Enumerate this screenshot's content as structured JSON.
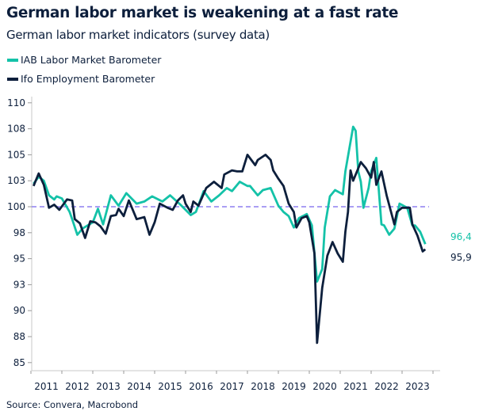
{
  "chart_data": {
    "type": "line",
    "title": "German labor market is weakening at a fast rate",
    "subtitle": "German labor market indicators (survey data)",
    "source": "Source: Convera, Macrobond",
    "legend_placement": "top-left",
    "grid": false,
    "ylim": [
      85,
      110
    ],
    "xlim": [
      "2011-01",
      "2024-01"
    ],
    "y_ticks": [
      {
        "value": 110,
        "label": "110"
      },
      {
        "value": 107.5,
        "label": "108"
      },
      {
        "value": 105,
        "label": "105"
      },
      {
        "value": 102.5,
        "label": "103"
      },
      {
        "value": 100,
        "label": "100"
      },
      {
        "value": 97.5,
        "label": "98"
      },
      {
        "value": 95,
        "label": "95"
      },
      {
        "value": 92.5,
        "label": "93"
      },
      {
        "value": 90,
        "label": "90"
      },
      {
        "value": 87.5,
        "label": "88"
      },
      {
        "value": 85,
        "label": "85"
      }
    ],
    "x_ticks": [
      "2011",
      "2012",
      "2013",
      "2014",
      "2015",
      "2016",
      "2017",
      "2018",
      "2019",
      "2020",
      "2021",
      "2022",
      "2023"
    ],
    "reference_line": {
      "value": 100,
      "style": "dashed",
      "color": "#8e7ff0"
    },
    "series": [
      {
        "name": "IAB Labor Market Barometer",
        "color": "#14c2a8",
        "end_label": "96,4",
        "points": [
          [
            "2011-02",
            102.2
          ],
          [
            "2011-04",
            102.9
          ],
          [
            "2011-06",
            102.5
          ],
          [
            "2011-08",
            101.1
          ],
          [
            "2011-10",
            100.7
          ],
          [
            "2011-11",
            101.0
          ],
          [
            "2012-01",
            100.8
          ],
          [
            "2012-04",
            99.5
          ],
          [
            "2012-05",
            98.8
          ],
          [
            "2012-07",
            97.3
          ],
          [
            "2012-09",
            97.9
          ],
          [
            "2013-01",
            98.5
          ],
          [
            "2013-03",
            99.8
          ],
          [
            "2013-05",
            98.3
          ],
          [
            "2013-08",
            101.1
          ],
          [
            "2013-11",
            100.1
          ],
          [
            "2014-02",
            101.3
          ],
          [
            "2014-06",
            100.3
          ],
          [
            "2014-09",
            100.5
          ],
          [
            "2014-12",
            101.0
          ],
          [
            "2015-04",
            100.5
          ],
          [
            "2015-07",
            101.1
          ],
          [
            "2015-11",
            100.2
          ],
          [
            "2016-03",
            99.2
          ],
          [
            "2016-05",
            99.5
          ],
          [
            "2016-08",
            101.5
          ],
          [
            "2016-11",
            100.5
          ],
          [
            "2017-02",
            101.1
          ],
          [
            "2017-05",
            101.8
          ],
          [
            "2017-07",
            101.5
          ],
          [
            "2017-10",
            102.4
          ],
          [
            "2018-01",
            102.0
          ],
          [
            "2018-02",
            102.0
          ],
          [
            "2018-05",
            101.1
          ],
          [
            "2018-07",
            101.6
          ],
          [
            "2018-10",
            101.8
          ],
          [
            "2019-01",
            100.1
          ],
          [
            "2019-03",
            99.5
          ],
          [
            "2019-05",
            99.1
          ],
          [
            "2019-07",
            98.0
          ],
          [
            "2019-09",
            98.9
          ],
          [
            "2019-12",
            99.3
          ],
          [
            "2020-02",
            98.2
          ],
          [
            "2020-04",
            92.8
          ],
          [
            "2020-06",
            94.0
          ],
          [
            "2020-07",
            98.0
          ],
          [
            "2020-09",
            101.0
          ],
          [
            "2020-11",
            101.6
          ],
          [
            "2021-02",
            101.2
          ],
          [
            "2021-03",
            103.4
          ],
          [
            "2021-06",
            107.7
          ],
          [
            "2021-07",
            107.3
          ],
          [
            "2021-08",
            103.4
          ],
          [
            "2021-09",
            102.4
          ],
          [
            "2021-10",
            99.9
          ],
          [
            "2021-12",
            101.8
          ],
          [
            "2022-01",
            103.4
          ],
          [
            "2022-03",
            104.7
          ],
          [
            "2022-05",
            98.3
          ],
          [
            "2022-06",
            98.2
          ],
          [
            "2022-08",
            97.3
          ],
          [
            "2022-10",
            97.9
          ],
          [
            "2022-12",
            100.3
          ],
          [
            "2023-03",
            99.9
          ],
          [
            "2023-05",
            98.2
          ],
          [
            "2023-06",
            98.2
          ],
          [
            "2023-08",
            97.6
          ],
          [
            "2023-10",
            96.4
          ]
        ]
      },
      {
        "name": "Ifo Employment Barometer",
        "color": "#0d1f3c",
        "end_label": "95,9",
        "points": [
          [
            "2011-02",
            102.0
          ],
          [
            "2011-04",
            103.2
          ],
          [
            "2011-06",
            102.1
          ],
          [
            "2011-08",
            99.9
          ],
          [
            "2011-10",
            100.2
          ],
          [
            "2011-12",
            99.7
          ],
          [
            "2012-03",
            100.7
          ],
          [
            "2012-05",
            100.6
          ],
          [
            "2012-06",
            98.8
          ],
          [
            "2012-08",
            98.4
          ],
          [
            "2012-10",
            97.0
          ],
          [
            "2012-12",
            98.6
          ],
          [
            "2013-02",
            98.5
          ],
          [
            "2013-04",
            98.1
          ],
          [
            "2013-06",
            97.4
          ],
          [
            "2013-08",
            99.1
          ],
          [
            "2013-10",
            99.2
          ],
          [
            "2013-11",
            99.8
          ],
          [
            "2014-01",
            99.1
          ],
          [
            "2014-03",
            100.6
          ],
          [
            "2014-06",
            98.8
          ],
          [
            "2014-09",
            99.0
          ],
          [
            "2014-11",
            97.3
          ],
          [
            "2015-01",
            98.5
          ],
          [
            "2015-03",
            100.3
          ],
          [
            "2015-06",
            99.9
          ],
          [
            "2015-08",
            99.7
          ],
          [
            "2015-10",
            100.6
          ],
          [
            "2015-12",
            101.1
          ],
          [
            "2016-01",
            100.3
          ],
          [
            "2016-03",
            99.5
          ],
          [
            "2016-04",
            100.5
          ],
          [
            "2016-06",
            100.1
          ],
          [
            "2016-09",
            101.8
          ],
          [
            "2016-12",
            102.4
          ],
          [
            "2017-03",
            101.8
          ],
          [
            "2017-04",
            103.1
          ],
          [
            "2017-07",
            103.5
          ],
          [
            "2017-09",
            103.4
          ],
          [
            "2017-11",
            103.4
          ],
          [
            "2018-01",
            105.0
          ],
          [
            "2018-04",
            104.0
          ],
          [
            "2018-05",
            104.5
          ],
          [
            "2018-08",
            105.0
          ],
          [
            "2018-10",
            104.5
          ],
          [
            "2018-11",
            103.5
          ],
          [
            "2019-01",
            102.7
          ],
          [
            "2019-03",
            102.0
          ],
          [
            "2019-05",
            100.3
          ],
          [
            "2019-07",
            99.5
          ],
          [
            "2019-08",
            98.0
          ],
          [
            "2019-10",
            98.9
          ],
          [
            "2019-12",
            99.1
          ],
          [
            "2020-01",
            98.5
          ],
          [
            "2020-03",
            95.5
          ],
          [
            "2020-04",
            86.9
          ],
          [
            "2020-06",
            92.2
          ],
          [
            "2020-08",
            95.3
          ],
          [
            "2020-10",
            96.6
          ],
          [
            "2020-12",
            95.5
          ],
          [
            "2021-02",
            94.7
          ],
          [
            "2021-03",
            97.6
          ],
          [
            "2021-04",
            99.5
          ],
          [
            "2021-05",
            103.5
          ],
          [
            "2021-06",
            102.5
          ],
          [
            "2021-09",
            104.3
          ],
          [
            "2021-11",
            103.7
          ],
          [
            "2022-01",
            102.8
          ],
          [
            "2022-02",
            104.3
          ],
          [
            "2022-03",
            102.1
          ],
          [
            "2022-05",
            103.4
          ],
          [
            "2022-07",
            101.1
          ],
          [
            "2022-10",
            98.3
          ],
          [
            "2022-11",
            99.5
          ],
          [
            "2023-01",
            99.9
          ],
          [
            "2023-04",
            99.9
          ],
          [
            "2023-05",
            98.3
          ],
          [
            "2023-07",
            97.2
          ],
          [
            "2023-09",
            95.7
          ],
          [
            "2023-10",
            95.9
          ]
        ]
      }
    ]
  }
}
